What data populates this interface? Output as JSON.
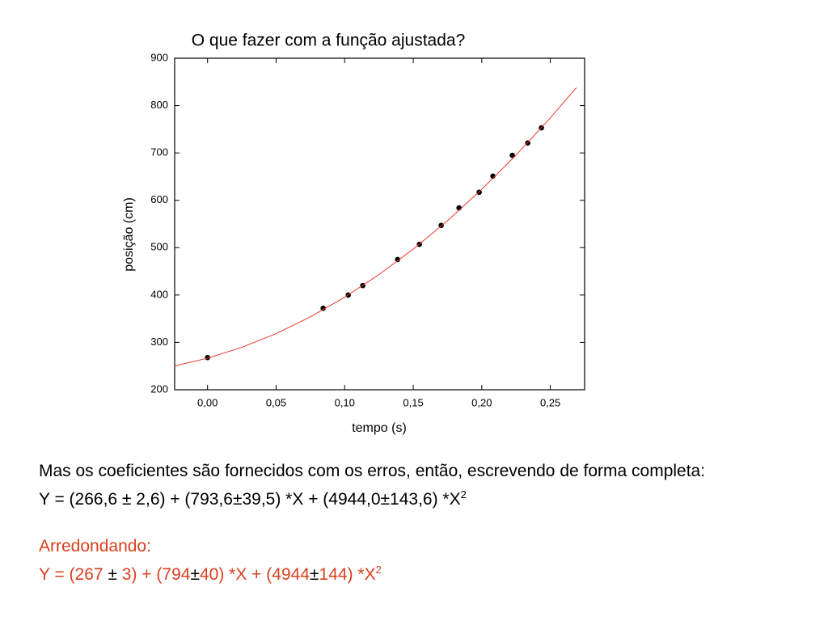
{
  "chart_data": {
    "type": "scatter",
    "title": "O que fazer com a função ajustada?",
    "x_label": "tempo (s)",
    "y_label": "posição (cm)",
    "xlim": [
      -0.024,
      0.275
    ],
    "ylim": [
      200,
      900
    ],
    "xticks": [
      {
        "value": 0,
        "label": "0,00"
      },
      {
        "value": 0.05,
        "label": "0,05"
      },
      {
        "value": 0.1,
        "label": "0,10"
      },
      {
        "value": 0.15,
        "label": "0,15"
      },
      {
        "value": 0.2,
        "label": "0,20"
      },
      {
        "value": 0.25,
        "label": "0,25"
      }
    ],
    "yticks": [
      200,
      300,
      400,
      500,
      600,
      700,
      800,
      900
    ],
    "series": [
      {
        "type": "scatter",
        "color": "#000000",
        "x": [
          0,
          0.0843,
          0.1026,
          0.1132,
          0.1386,
          0.1545,
          0.1704,
          0.1834,
          0.1981,
          0.2081,
          0.2223,
          0.2335,
          0.2435
        ],
        "values": [
          268,
          372,
          400,
          420,
          475,
          507,
          547,
          584,
          617,
          651,
          695,
          721,
          753
        ]
      },
      {
        "type": "line",
        "color": "#e8382b",
        "x": [
          -0.024,
          0,
          0.025,
          0.05,
          0.075,
          0.1,
          0.125,
          0.15,
          0.175,
          0.2,
          0.225,
          0.25,
          0.269
        ],
        "values": [
          250.4,
          266.6,
          289.5,
          318.6,
          353.9,
          395.4,
          443.1,
          496.9,
          556.9,
          623.1,
          695.5,
          774.0,
          837.8
        ]
      }
    ]
  },
  "body": {
    "paragraph": "Mas os coeficientes são fornecidos com os erros, então, escrevendo de forma completa:",
    "equation": {
      "text": "Y = (266,6 ± 2,6) + (793,6±39,5) *X + (4944,0±143,6) *X",
      "superscript": "2"
    },
    "rounding_heading": "Arredondando:",
    "rounded_equation": {
      "parts": [
        "Y = (267 ",
        "±",
        " 3) + (794",
        "±",
        "40) *X + (4944",
        "±",
        "144) *X"
      ],
      "superscript": "2"
    }
  }
}
